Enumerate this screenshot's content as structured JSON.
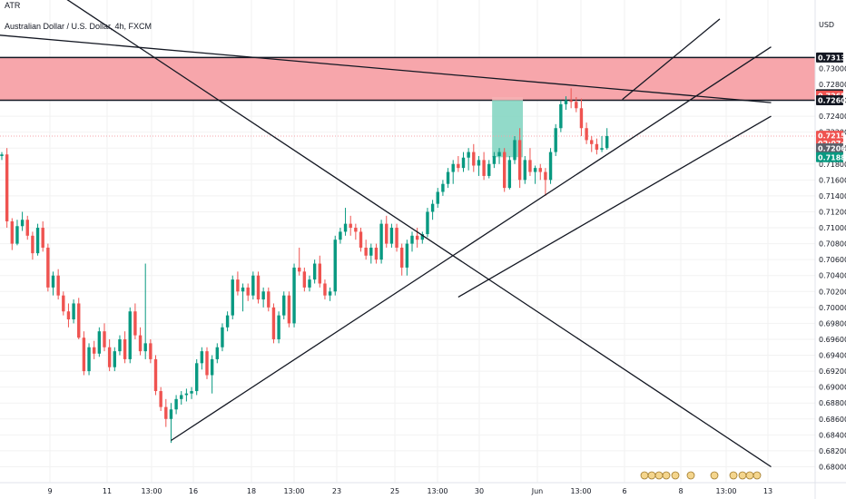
{
  "header": {
    "indicator_label": "ATR",
    "symbol_title": "Australian Dollar / U.S. Dollar, 4h, FXCM"
  },
  "colors": {
    "up": "#ffffff",
    "up_border": "#131722",
    "up_fill": "#089981",
    "down_fill": "#ef5350",
    "zone_fill": "#f7a6ab",
    "zone_border": "#131722",
    "position_target": "#7fd3c0",
    "position_stop": "#f5b1b4",
    "trend_line": "#131722"
  },
  "chart_data": {
    "type": "candlestick",
    "y_axis_unit": "USD",
    "ylim": [
      0.6796,
      0.7338
    ],
    "y_ticks": [
      "0.73000",
      "0.72800",
      "0.72600",
      "0.72400",
      "0.72200",
      "0.72000",
      "0.71800",
      "0.71600",
      "0.71400",
      "0.71200",
      "0.71000",
      "0.70800",
      "0.70600",
      "0.70400",
      "0.70200",
      "0.70000",
      "0.69800",
      "0.69600",
      "0.69400",
      "0.69200",
      "0.69000",
      "0.68800",
      "0.68600",
      "0.68400",
      "0.68200",
      "0.68000"
    ],
    "x_tick_labels": [
      "9",
      "11",
      "13:00",
      "16",
      "18",
      "13:00",
      "23",
      "25",
      "13:00",
      "30",
      "Jun",
      "13:00",
      "6",
      "8",
      "13:00",
      "13"
    ],
    "price_badges": [
      {
        "label": "0.73136",
        "price": 0.73136,
        "style": "dark"
      },
      {
        "label": "0.72676",
        "price": 0.72676,
        "style": "dark"
      },
      {
        "label": "0.72659",
        "price": 0.72659,
        "style": "red"
      },
      {
        "label": "0.72600",
        "price": 0.726,
        "style": "dark"
      },
      {
        "label": "0.72154",
        "price": 0.72154,
        "style": "red"
      },
      {
        "label": "02:07:47",
        "price": 0.7206,
        "style": "red"
      },
      {
        "label": "0.72066",
        "price": 0.71996,
        "style": "gray"
      },
      {
        "label": "0.71885",
        "price": 0.71885,
        "style": "green"
      }
    ],
    "supply_zone": {
      "top": 0.73136,
      "bottom": 0.726
    },
    "position": {
      "entry": 0.726,
      "target": 0.71885,
      "stop": 0.7264,
      "x_start": 95.6,
      "x_end": 101.6
    },
    "candles": [
      [
        0.719,
        0.7195,
        0.7185,
        0.7192
      ],
      [
        0.7192,
        0.72,
        0.71,
        0.7108
      ],
      [
        0.7108,
        0.7112,
        0.7072,
        0.708
      ],
      [
        0.708,
        0.711,
        0.7078,
        0.7102
      ],
      [
        0.7102,
        0.712,
        0.7096,
        0.711
      ],
      [
        0.711,
        0.7115,
        0.7085,
        0.709
      ],
      [
        0.709,
        0.7095,
        0.706,
        0.7068
      ],
      [
        0.7068,
        0.7105,
        0.7065,
        0.71
      ],
      [
        0.71,
        0.7108,
        0.707,
        0.7075
      ],
      [
        0.7075,
        0.708,
        0.702,
        0.7025
      ],
      [
        0.7025,
        0.7045,
        0.7015,
        0.704
      ],
      [
        0.704,
        0.7048,
        0.701,
        0.7015
      ],
      [
        0.7015,
        0.702,
        0.699,
        0.6995
      ],
      [
        0.6995,
        0.7005,
        0.6975,
        0.6985
      ],
      [
        0.6985,
        0.701,
        0.698,
        0.7005
      ],
      [
        0.7005,
        0.7012,
        0.696,
        0.6962
      ],
      [
        0.6962,
        0.697,
        0.6915,
        0.692
      ],
      [
        0.692,
        0.6955,
        0.6915,
        0.695
      ],
      [
        0.695,
        0.6958,
        0.6935,
        0.6942
      ],
      [
        0.6942,
        0.6975,
        0.6938,
        0.697
      ],
      [
        0.697,
        0.698,
        0.6945,
        0.695
      ],
      [
        0.695,
        0.696,
        0.692,
        0.6925
      ],
      [
        0.6925,
        0.695,
        0.692,
        0.6945
      ],
      [
        0.6945,
        0.6965,
        0.694,
        0.696
      ],
      [
        0.696,
        0.697,
        0.693,
        0.6935
      ],
      [
        0.6935,
        0.7,
        0.693,
        0.6995
      ],
      [
        0.6995,
        0.7005,
        0.696,
        0.6965
      ],
      [
        0.6965,
        0.6975,
        0.694,
        0.6945
      ],
      [
        0.6945,
        0.7055,
        0.6935,
        0.6955
      ],
      [
        0.6955,
        0.696,
        0.693,
        0.6935
      ],
      [
        0.6935,
        0.694,
        0.689,
        0.6895
      ],
      [
        0.6895,
        0.69,
        0.687,
        0.6875
      ],
      [
        0.6875,
        0.6885,
        0.685,
        0.686
      ],
      [
        0.686,
        0.688,
        0.683,
        0.6872
      ],
      [
        0.6872,
        0.689,
        0.6866,
        0.6885
      ],
      [
        0.6885,
        0.6895,
        0.6878,
        0.689
      ],
      [
        0.689,
        0.6898,
        0.6882,
        0.6892
      ],
      [
        0.6892,
        0.69,
        0.6885,
        0.6895
      ],
      [
        0.6895,
        0.6935,
        0.689,
        0.693
      ],
      [
        0.693,
        0.695,
        0.6922,
        0.6945
      ],
      [
        0.6945,
        0.695,
        0.691,
        0.6915
      ],
      [
        0.6915,
        0.694,
        0.6892,
        0.6935
      ],
      [
        0.6935,
        0.6955,
        0.693,
        0.695
      ],
      [
        0.695,
        0.698,
        0.6945,
        0.6975
      ],
      [
        0.6975,
        0.6995,
        0.697,
        0.699
      ],
      [
        0.699,
        0.704,
        0.6985,
        0.7035
      ],
      [
        0.7035,
        0.7045,
        0.7015,
        0.702
      ],
      [
        0.702,
        0.703,
        0.6995,
        0.7025
      ],
      [
        0.7025,
        0.703,
        0.7008,
        0.7015
      ],
      [
        0.7015,
        0.7045,
        0.701,
        0.704
      ],
      [
        0.704,
        0.7045,
        0.7005,
        0.701
      ],
      [
        0.701,
        0.7025,
        0.7,
        0.702
      ],
      [
        0.702,
        0.7025,
        0.6995,
        0.7
      ],
      [
        0.7,
        0.7005,
        0.6955,
        0.696
      ],
      [
        0.696,
        0.6995,
        0.6955,
        0.699
      ],
      [
        0.699,
        0.702,
        0.6985,
        0.7015
      ],
      [
        0.7015,
        0.702,
        0.6975,
        0.698
      ],
      [
        0.698,
        0.7055,
        0.6975,
        0.705
      ],
      [
        0.705,
        0.7075,
        0.704,
        0.7045
      ],
      [
        0.7045,
        0.705,
        0.702,
        0.7025
      ],
      [
        0.7025,
        0.704,
        0.702,
        0.7035
      ],
      [
        0.7035,
        0.706,
        0.703,
        0.7055
      ],
      [
        0.7055,
        0.7065,
        0.7025,
        0.703
      ],
      [
        0.703,
        0.7035,
        0.701,
        0.7015
      ],
      [
        0.7015,
        0.7025,
        0.7008,
        0.702
      ],
      [
        0.702,
        0.709,
        0.7015,
        0.7085
      ],
      [
        0.7085,
        0.71,
        0.708,
        0.7095
      ],
      [
        0.7095,
        0.7125,
        0.709,
        0.7105
      ],
      [
        0.7105,
        0.7115,
        0.709,
        0.71
      ],
      [
        0.71,
        0.7105,
        0.7085,
        0.7095
      ],
      [
        0.7095,
        0.71,
        0.707,
        0.7075
      ],
      [
        0.7075,
        0.7085,
        0.706,
        0.7065
      ],
      [
        0.7065,
        0.708,
        0.7055,
        0.7075
      ],
      [
        0.7075,
        0.708,
        0.7055,
        0.706
      ],
      [
        0.706,
        0.711,
        0.7055,
        0.7105
      ],
      [
        0.7105,
        0.7115,
        0.7075,
        0.708
      ],
      [
        0.708,
        0.7105,
        0.7075,
        0.71
      ],
      [
        0.71,
        0.7105,
        0.707,
        0.7075
      ],
      [
        0.7075,
        0.708,
        0.704,
        0.705
      ],
      [
        0.705,
        0.7085,
        0.704,
        0.708
      ],
      [
        0.708,
        0.7095,
        0.707,
        0.709
      ],
      [
        0.709,
        0.71,
        0.7075,
        0.7085
      ],
      [
        0.7085,
        0.7095,
        0.708,
        0.7092
      ],
      [
        0.7092,
        0.7125,
        0.7088,
        0.712
      ],
      [
        0.712,
        0.7135,
        0.711,
        0.713
      ],
      [
        0.713,
        0.715,
        0.7125,
        0.7145
      ],
      [
        0.7145,
        0.716,
        0.714,
        0.7155
      ],
      [
        0.7155,
        0.7175,
        0.715,
        0.717
      ],
      [
        0.717,
        0.7185,
        0.7155,
        0.718
      ],
      [
        0.718,
        0.719,
        0.717,
        0.7175
      ],
      [
        0.7175,
        0.7195,
        0.717,
        0.7188
      ],
      [
        0.7188,
        0.72,
        0.7172,
        0.7195
      ],
      [
        0.7195,
        0.7205,
        0.717,
        0.7178
      ],
      [
        0.7178,
        0.719,
        0.7165,
        0.7185
      ],
      [
        0.7185,
        0.7195,
        0.716,
        0.7165
      ],
      [
        0.7165,
        0.7185,
        0.7162,
        0.718
      ],
      [
        0.718,
        0.7195,
        0.7175,
        0.719
      ],
      [
        0.719,
        0.72,
        0.718,
        0.7195
      ],
      [
        0.7195,
        0.72,
        0.7145,
        0.715
      ],
      [
        0.715,
        0.719,
        0.7148,
        0.7185
      ],
      [
        0.7185,
        0.7215,
        0.718,
        0.721
      ],
      [
        0.721,
        0.7225,
        0.715,
        0.716
      ],
      [
        0.716,
        0.719,
        0.7155,
        0.7185
      ],
      [
        0.7185,
        0.72,
        0.7165,
        0.717
      ],
      [
        0.717,
        0.7178,
        0.7155,
        0.7175
      ],
      [
        0.7175,
        0.718,
        0.716,
        0.717
      ],
      [
        0.717,
        0.7175,
        0.714,
        0.716
      ],
      [
        0.716,
        0.72,
        0.7155,
        0.7195
      ],
      [
        0.7195,
        0.723,
        0.719,
        0.7225
      ],
      [
        0.7225,
        0.726,
        0.722,
        0.7255
      ],
      [
        0.7255,
        0.7265,
        0.7248,
        0.726
      ],
      [
        0.726,
        0.7275,
        0.725,
        0.7258
      ],
      [
        0.7258,
        0.7264,
        0.7245,
        0.725
      ],
      [
        0.725,
        0.7262,
        0.7215,
        0.7225
      ],
      [
        0.7225,
        0.7232,
        0.7205,
        0.721
      ],
      [
        0.721,
        0.7215,
        0.7195,
        0.7205
      ],
      [
        0.7205,
        0.7212,
        0.7192,
        0.7198
      ],
      [
        0.7198,
        0.7215,
        0.7195,
        0.72
      ],
      [
        0.72,
        0.7225,
        0.7198,
        0.7215
      ]
    ],
    "trend_lines": [
      {
        "name": "descending-line",
        "from": [
          -1,
          0.7445
        ],
        "to": [
          150,
          0.68
        ]
      },
      {
        "name": "zone-top-line",
        "from": [
          -1,
          0.7342
        ],
        "to": [
          150,
          0.7257
        ]
      },
      {
        "name": "rising-support",
        "from": [
          33,
          0.6833
        ],
        "to": [
          150,
          0.7327
        ]
      },
      {
        "name": "parallel-line-1",
        "from": [
          121,
          0.7261
        ],
        "to": [
          140,
          0.7362
        ]
      },
      {
        "name": "parallel-line-2",
        "from": [
          89,
          0.7013
        ],
        "to": [
          150,
          0.724
        ]
      }
    ]
  }
}
